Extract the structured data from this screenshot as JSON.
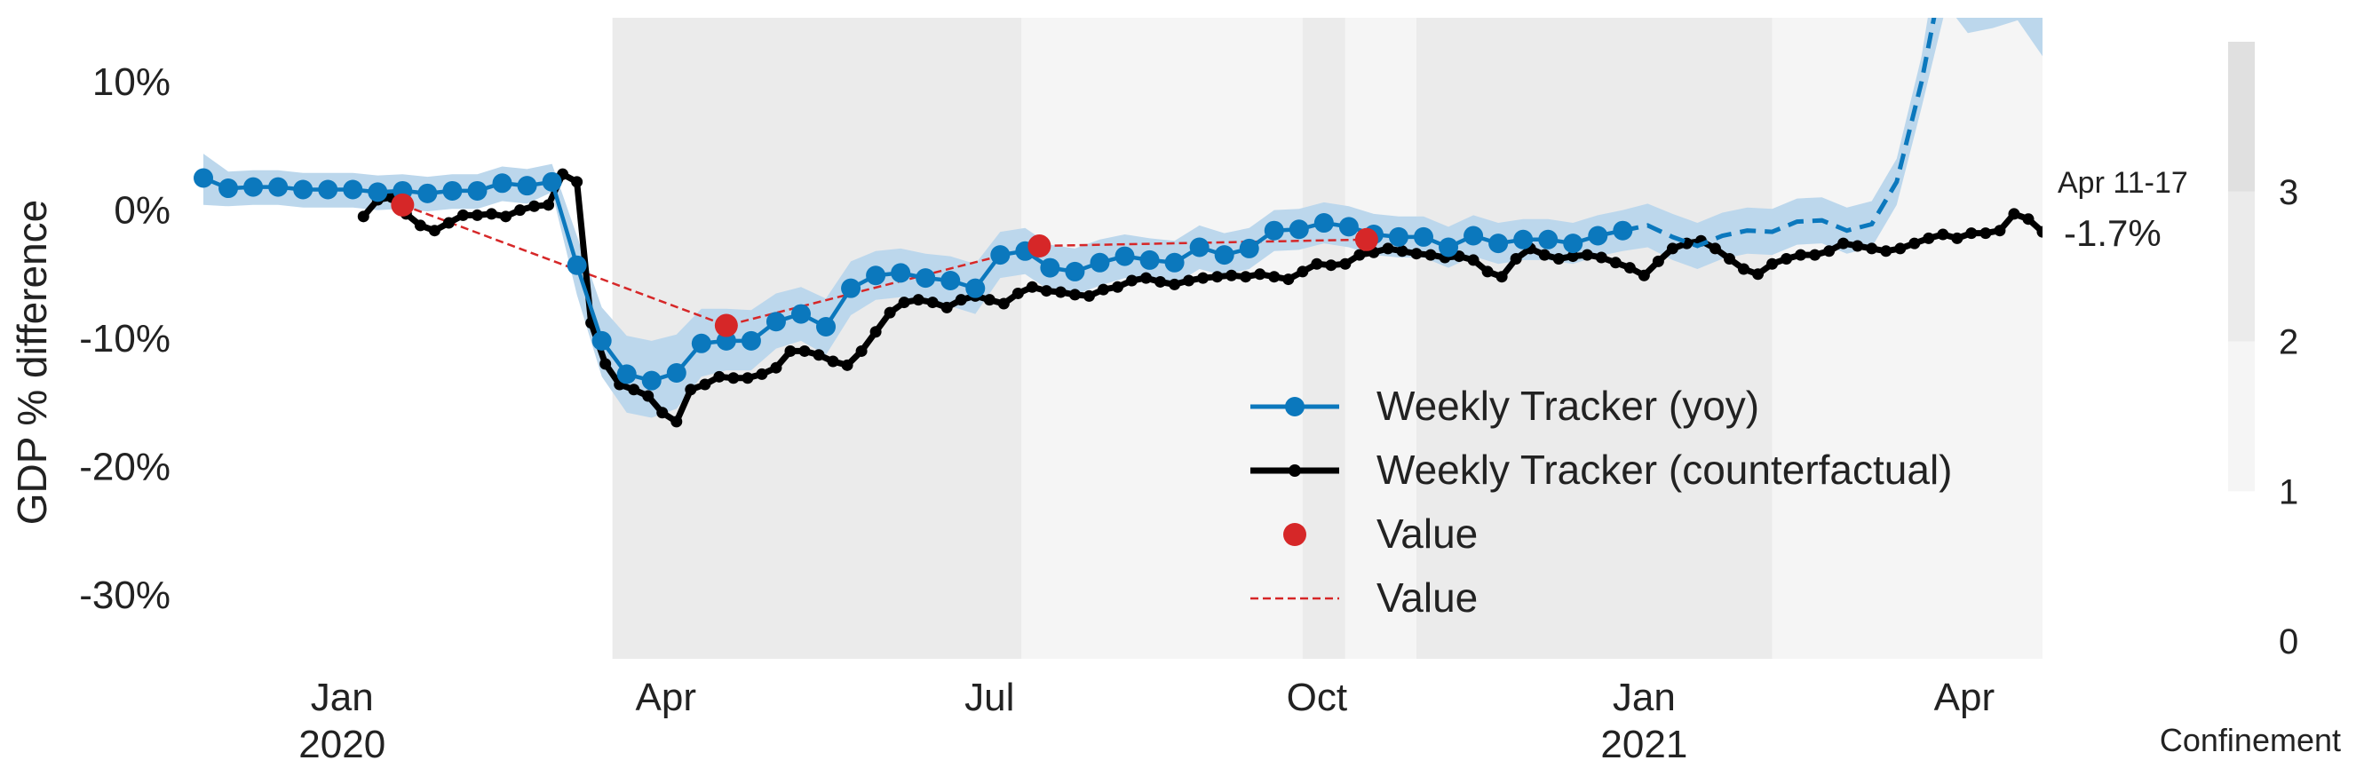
{
  "chart_data": {
    "type": "line",
    "ylabel": "GDP % difference",
    "ylim": [
      -35,
      15
    ],
    "xlim": [
      "2019-11-20",
      "2021-04-23"
    ],
    "yticks": [
      {
        "value": 10,
        "label": "10%"
      },
      {
        "value": 0,
        "label": "0%"
      },
      {
        "value": -10,
        "label": "-10%"
      },
      {
        "value": -20,
        "label": "-20%"
      },
      {
        "value": -30,
        "label": "-30%"
      }
    ],
    "xticks": [
      {
        "date": "2020-01-01",
        "label": "Jan",
        "year": "2020"
      },
      {
        "date": "2020-04-01",
        "label": "Apr",
        "year": ""
      },
      {
        "date": "2020-07-01",
        "label": "Jul",
        "year": ""
      },
      {
        "date": "2020-10-01",
        "label": "Oct",
        "year": ""
      },
      {
        "date": "2021-01-01",
        "label": "Jan",
        "year": "2021"
      },
      {
        "date": "2021-04-01",
        "label": "Apr",
        "year": ""
      }
    ],
    "grid": false,
    "legend_position": "bottom-right",
    "legend": [
      {
        "label": "Weekly Tracker (yoy)",
        "style": "line-dot",
        "color": "#0b78bd"
      },
      {
        "label": "Weekly Tracker (counterfactual)",
        "style": "line-dot-small",
        "color": "#000000"
      },
      {
        "label": "Value",
        "style": "marker",
        "color": "#d62728"
      },
      {
        "label": "Value",
        "style": "dashed",
        "color": "#d62728"
      }
    ],
    "annotation": {
      "period": "Apr 11-17",
      "value": "-1.7%",
      "date": "2021-04-14",
      "y": -1.7
    },
    "confinement": {
      "title": "Confinement",
      "levels": [
        {
          "label": "0",
          "color": "#ffffff"
        },
        {
          "label": "1",
          "color": "#f5f5f5"
        },
        {
          "label": "2",
          "color": "#ebebeb"
        },
        {
          "label": "3",
          "color": "#e0e0e0"
        }
      ],
      "periods": [
        {
          "start": "2020-03-17",
          "end": "2020-07-10",
          "level": 2
        },
        {
          "start": "2020-07-10",
          "end": "2020-09-27",
          "level": 1
        },
        {
          "start": "2020-09-27",
          "end": "2020-10-09",
          "level": 2
        },
        {
          "start": "2020-10-09",
          "end": "2020-10-29",
          "level": 1
        },
        {
          "start": "2020-10-29",
          "end": "2021-02-06",
          "level": 2
        },
        {
          "start": "2021-02-06",
          "end": "2021-04-23",
          "level": 1
        }
      ]
    },
    "colors": {
      "yoy": "#0b78bd",
      "band": "#bcd7ec",
      "counterfactual": "#000000",
      "value": "#d62728"
    },
    "yoy_observed": {
      "x": [
        "2019-11-23",
        "2019-11-30",
        "2019-12-07",
        "2019-12-14",
        "2019-12-21",
        "2019-12-28",
        "2020-01-04",
        "2020-01-11",
        "2020-01-18",
        "2020-01-25",
        "2020-02-01",
        "2020-02-08",
        "2020-02-15",
        "2020-02-22",
        "2020-02-29",
        "2020-03-07",
        "2020-03-14",
        "2020-03-21",
        "2020-03-28",
        "2020-04-04",
        "2020-04-11",
        "2020-04-18",
        "2020-04-25",
        "2020-05-02",
        "2020-05-09",
        "2020-05-16",
        "2020-05-23",
        "2020-05-30",
        "2020-06-06",
        "2020-06-13",
        "2020-06-20",
        "2020-06-27",
        "2020-07-04",
        "2020-07-11",
        "2020-07-18",
        "2020-07-25",
        "2020-08-01",
        "2020-08-08",
        "2020-08-15",
        "2020-08-22",
        "2020-08-29",
        "2020-09-05",
        "2020-09-12",
        "2020-09-19",
        "2020-09-26",
        "2020-10-03",
        "2020-10-10",
        "2020-10-17",
        "2020-10-24",
        "2020-10-31",
        "2020-11-07",
        "2020-11-14",
        "2020-11-21",
        "2020-11-28",
        "2020-12-05",
        "2020-12-12",
        "2020-12-19",
        "2020-12-26"
      ],
      "values": [
        2.5,
        1.7,
        1.8,
        1.8,
        1.6,
        1.6,
        1.6,
        1.4,
        1.5,
        1.3,
        1.5,
        1.5,
        2.1,
        1.9,
        2.2,
        -4.3,
        -10.2,
        -12.8,
        -13.3,
        -12.7,
        -10.4,
        -10.2,
        -10.2,
        -8.7,
        -8.1,
        -9.1,
        -6.1,
        -5.1,
        -4.9,
        -5.3,
        -5.5,
        -6.1,
        -3.5,
        -3.2,
        -4.5,
        -4.8,
        -4.1,
        -3.6,
        -3.9,
        -4.1,
        -2.9,
        -3.5,
        -3.0,
        -1.6,
        -1.5,
        -1.0,
        -1.3,
        -1.9,
        -2.1,
        -2.1,
        -2.9,
        -2.0,
        -2.6,
        -2.3,
        -2.3,
        -2.6,
        -2.0,
        -1.6
      ],
      "lower": [
        0.4,
        0.3,
        0.4,
        0.4,
        0.2,
        0.2,
        0.2,
        0.0,
        0.1,
        -0.1,
        0.1,
        0.1,
        0.7,
        0.5,
        1.4,
        -6.6,
        -13.0,
        -15.8,
        -16.2,
        -15.5,
        -13.0,
        -12.5,
        -12.5,
        -10.8,
        -10.2,
        -11.3,
        -8.2,
        -7.0,
        -6.8,
        -7.2,
        -7.5,
        -8.1,
        -5.3,
        -5.0,
        -6.3,
        -6.6,
        -5.9,
        -5.3,
        -5.6,
        -5.8,
        -4.6,
        -5.1,
        -4.6,
        -3.2,
        -3.1,
        -2.6,
        -2.9,
        -3.5,
        -3.7,
        -3.7,
        -4.5,
        -3.6,
        -4.2,
        -3.9,
        -3.9,
        -4.2,
        -3.6,
        -3.2
      ],
      "upper": [
        4.4,
        3.0,
        3.1,
        3.1,
        2.9,
        2.9,
        2.9,
        2.7,
        2.8,
        2.6,
        2.8,
        2.8,
        3.4,
        3.2,
        3.6,
        -2.0,
        -7.6,
        -9.8,
        -10.2,
        -9.7,
        -7.7,
        -7.7,
        -7.8,
        -6.5,
        -6.0,
        -6.9,
        -4.0,
        -3.2,
        -3.0,
        -3.4,
        -3.6,
        -4.2,
        -1.7,
        -1.4,
        -2.7,
        -3.0,
        -2.3,
        -1.9,
        -2.2,
        -2.4,
        -1.2,
        -1.8,
        -1.4,
        0.0,
        0.1,
        0.6,
        0.3,
        -0.3,
        -0.5,
        -0.5,
        -1.3,
        -0.4,
        -1.0,
        -0.7,
        -0.7,
        -1.0,
        -0.4,
        0.0
      ]
    },
    "yoy_projected": {
      "x": [
        "2020-12-26",
        "2021-01-02",
        "2021-01-09",
        "2021-01-16",
        "2021-01-23",
        "2021-01-30",
        "2021-02-06",
        "2021-02-13",
        "2021-02-20",
        "2021-02-27",
        "2021-03-06",
        "2021-03-13",
        "2021-03-20",
        "2021-03-27"
      ],
      "values": [
        -1.6,
        -1.2,
        -2.1,
        -2.8,
        -2.0,
        -1.6,
        -1.7,
        -0.9,
        -0.8,
        -1.6,
        -1.1,
        2.2,
        10.0,
        20.0
      ],
      "lower": [
        -3.2,
        -2.9,
        -3.9,
        -4.6,
        -3.8,
        -3.4,
        -3.5,
        -2.7,
        -2.6,
        -3.4,
        -2.9,
        0.4,
        8.0,
        16.0
      ],
      "upper": [
        0.0,
        0.5,
        -0.3,
        -1.0,
        -0.2,
        0.2,
        0.1,
        0.9,
        1.0,
        0.2,
        0.7,
        4.0,
        12.0,
        24.0
      ]
    },
    "band_tail": [
      {
        "x": "2021-04-02",
        "lower": 13.8,
        "upper": 19.0
      },
      {
        "x": "2021-04-09",
        "lower": 14.2,
        "upper": 19.0
      },
      {
        "x": "2021-04-16",
        "lower": 14.8,
        "upper": 19.0
      },
      {
        "x": "2021-04-23",
        "lower": 12.0,
        "upper": 17.0
      }
    ],
    "counterfactual": {
      "x": [
        "2020-01-07",
        "2020-01-11",
        "2020-01-15",
        "2020-01-19",
        "2020-01-23",
        "2020-01-27",
        "2020-01-31",
        "2020-02-04",
        "2020-02-08",
        "2020-02-12",
        "2020-02-16",
        "2020-02-20",
        "2020-02-24",
        "2020-02-28",
        "2020-03-03",
        "2020-03-07",
        "2020-03-11",
        "2020-03-15",
        "2020-03-19",
        "2020-03-23",
        "2020-03-27",
        "2020-03-31",
        "2020-04-04",
        "2020-04-08",
        "2020-04-12",
        "2020-04-16",
        "2020-04-20",
        "2020-04-24",
        "2020-04-28",
        "2020-05-02",
        "2020-05-06",
        "2020-05-10",
        "2020-05-14",
        "2020-05-18",
        "2020-05-22",
        "2020-05-26",
        "2020-05-30",
        "2020-06-03",
        "2020-06-07",
        "2020-06-11",
        "2020-06-15",
        "2020-06-19",
        "2020-06-23",
        "2020-06-27",
        "2020-07-01",
        "2020-07-05",
        "2020-07-09",
        "2020-07-13",
        "2020-07-17",
        "2020-07-21",
        "2020-07-25",
        "2020-07-29",
        "2020-08-02",
        "2020-08-06",
        "2020-08-10",
        "2020-08-14",
        "2020-08-18",
        "2020-08-22",
        "2020-08-26",
        "2020-08-30",
        "2020-09-03",
        "2020-09-07",
        "2020-09-11",
        "2020-09-15",
        "2020-09-19",
        "2020-09-23",
        "2020-09-27",
        "2020-10-01",
        "2020-10-05",
        "2020-10-09",
        "2020-10-13",
        "2020-10-17",
        "2020-10-21",
        "2020-10-25",
        "2020-10-29",
        "2020-11-02",
        "2020-11-06",
        "2020-11-10",
        "2020-11-14",
        "2020-11-18",
        "2020-11-22",
        "2020-11-26",
        "2020-11-30",
        "2020-12-04",
        "2020-12-08",
        "2020-12-12",
        "2020-12-16",
        "2020-12-20",
        "2020-12-24",
        "2020-12-28",
        "2021-01-01",
        "2021-01-05",
        "2021-01-09",
        "2021-01-13",
        "2021-01-17",
        "2021-01-21",
        "2021-01-25",
        "2021-01-29",
        "2021-02-02",
        "2021-02-06",
        "2021-02-10",
        "2021-02-14",
        "2021-02-18",
        "2021-02-22",
        "2021-02-26",
        "2021-03-02",
        "2021-03-06",
        "2021-03-10",
        "2021-03-14",
        "2021-03-18",
        "2021-03-22",
        "2021-03-26",
        "2021-03-30",
        "2021-04-03",
        "2021-04-07",
        "2021-04-11",
        "2021-04-15",
        "2021-04-19",
        "2021-04-23"
      ],
      "values": [
        -0.5,
        0.8,
        1.0,
        -0.3,
        -1.2,
        -1.6,
        -1.0,
        -0.4,
        -0.4,
        -0.3,
        -0.5,
        0.0,
        0.3,
        0.4,
        2.8,
        2.2,
        -8.8,
        -12.0,
        -13.6,
        -14.0,
        -14.5,
        -15.8,
        -16.5,
        -14.0,
        -13.6,
        -13.0,
        -13.1,
        -13.1,
        -12.8,
        -12.3,
        -11.0,
        -11.0,
        -11.3,
        -11.8,
        -12.1,
        -11.0,
        -9.5,
        -8.0,
        -7.2,
        -7.0,
        -7.2,
        -7.6,
        -7.0,
        -6.7,
        -7.0,
        -7.3,
        -6.5,
        -6.0,
        -6.3,
        -6.4,
        -6.6,
        -6.7,
        -6.2,
        -6.0,
        -5.5,
        -5.3,
        -5.6,
        -5.8,
        -5.5,
        -5.3,
        -5.2,
        -5.1,
        -5.2,
        -5.0,
        -5.2,
        -5.4,
        -4.8,
        -4.2,
        -4.3,
        -4.2,
        -3.5,
        -3.3,
        -3.0,
        -3.2,
        -3.4,
        -3.5,
        -3.7,
        -3.6,
        -3.9,
        -4.8,
        -5.2,
        -3.8,
        -3.0,
        -3.5,
        -3.8,
        -3.6,
        -3.5,
        -3.7,
        -4.1,
        -4.5,
        -5.1,
        -4.0,
        -3.0,
        -2.6,
        -2.4,
        -3.0,
        -3.8,
        -4.6,
        -5.0,
        -4.2,
        -3.8,
        -3.5,
        -3.5,
        -3.2,
        -2.6,
        -2.8,
        -3.0,
        -3.2,
        -3.0,
        -2.6,
        -2.2,
        -1.9,
        -2.2,
        -1.8,
        -1.8,
        -1.6,
        -0.3,
        -0.7,
        -1.7
      ]
    },
    "value_points": {
      "x": [
        "2020-01-18",
        "2020-04-18",
        "2020-07-15",
        "2020-10-15"
      ],
      "values": [
        0.4,
        -9.0,
        -2.8,
        -2.3
      ]
    }
  }
}
